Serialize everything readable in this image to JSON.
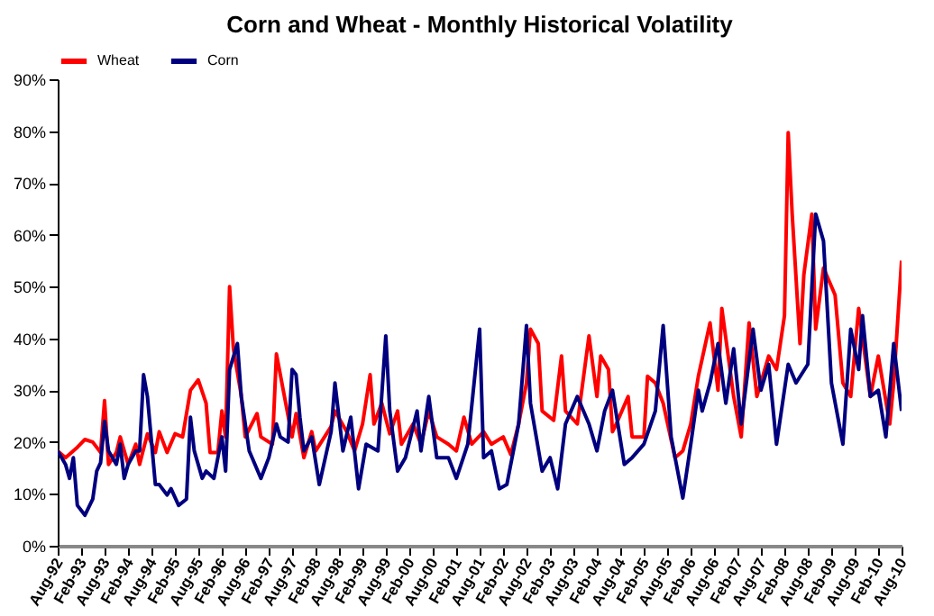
{
  "chart_data": {
    "type": "line",
    "title": "Corn and Wheat - Monthly Historical Volatility",
    "series": [
      {
        "name": "Wheat",
        "color": "#ff0000",
        "x": [
          "1992-08",
          "1992-10",
          "1993-01",
          "1993-03",
          "1993-05",
          "1993-07",
          "1993-08",
          "1993-09",
          "1993-11",
          "1993-12",
          "1994-02",
          "1994-04",
          "1994-05",
          "1994-07",
          "1994-09",
          "1994-10",
          "1994-12",
          "1995-02",
          "1995-04",
          "1995-06",
          "1995-08",
          "1995-10",
          "1995-11",
          "1996-01",
          "1996-02",
          "1996-03",
          "1996-04",
          "1996-05",
          "1996-07",
          "1996-08",
          "1996-11",
          "1996-12",
          "1997-03",
          "1997-04",
          "1997-06",
          "1997-08",
          "1997-09",
          "1997-11",
          "1998-01",
          "1998-02",
          "1998-06",
          "1998-07",
          "1998-10",
          "1998-12",
          "1999-02",
          "1999-04",
          "1999-05",
          "1999-07",
          "1999-09",
          "1999-11",
          "1999-12",
          "2000-03",
          "2000-05",
          "2000-07",
          "2000-09",
          "2000-12",
          "2001-02",
          "2001-04",
          "2001-06",
          "2001-09",
          "2001-11",
          "2002-02",
          "2002-04",
          "2002-06",
          "2002-08",
          "2002-09",
          "2002-11",
          "2002-12",
          "2003-03",
          "2003-05",
          "2003-06",
          "2003-09",
          "2003-12",
          "2004-02",
          "2004-03",
          "2004-05",
          "2004-06",
          "2004-07",
          "2004-10",
          "2004-11",
          "2005-02",
          "2005-03",
          "2005-05",
          "2005-07",
          "2005-10",
          "2005-12",
          "2006-02",
          "2006-04",
          "2006-07",
          "2006-09",
          "2006-10",
          "2007-01",
          "2007-03",
          "2007-05",
          "2007-07",
          "2007-10",
          "2007-12",
          "2008-02",
          "2008-03",
          "2008-04",
          "2008-06",
          "2008-07",
          "2008-09",
          "2008-10",
          "2008-12",
          "2009-03",
          "2009-05",
          "2009-07",
          "2009-09",
          "2009-12",
          "2010-02",
          "2010-05",
          "2010-06",
          "2010-08"
        ],
        "values": [
          18.3,
          17,
          19,
          20.5,
          20,
          18,
          28,
          15.7,
          18,
          21,
          15.7,
          19.6,
          15.7,
          21.6,
          18,
          22,
          18,
          21.6,
          21,
          30,
          32,
          27.5,
          18,
          18,
          26,
          21,
          50,
          38,
          29,
          21,
          25.5,
          21,
          19.6,
          37,
          29,
          21,
          25.5,
          17,
          22,
          18.3,
          23,
          26,
          22,
          18.3,
          23.5,
          33,
          23.5,
          27.5,
          21.6,
          26,
          19.6,
          23.5,
          19.6,
          26,
          21,
          19.6,
          18.3,
          24.8,
          19.6,
          22,
          19.6,
          21,
          17.6,
          23.5,
          31.4,
          41.8,
          39,
          26,
          24.2,
          36.6,
          26,
          23.5,
          40.5,
          28.8,
          36.6,
          34,
          22,
          23.5,
          28.8,
          21,
          21,
          32.7,
          31.4,
          27.5,
          17,
          18.3,
          23.5,
          32.7,
          43,
          30,
          45.8,
          28.8,
          21,
          43,
          28.8,
          36.6,
          34,
          44.4,
          79.7,
          64,
          39,
          52.3,
          64,
          41.8,
          53.6,
          48.4,
          31.4,
          28.8,
          45.8,
          28.8,
          36.6,
          23.5,
          31.4,
          55
        ]
      },
      {
        "name": "Corn",
        "color": "#00007f",
        "x": [
          "1992-08",
          "1992-10",
          "1992-11",
          "1992-12",
          "1993-01",
          "1993-03",
          "1993-05",
          "1993-06",
          "1993-07",
          "1993-08",
          "1993-09",
          "1993-11",
          "1993-12",
          "1994-01",
          "1994-02",
          "1994-04",
          "1994-05",
          "1994-06",
          "1994-07",
          "1994-09",
          "1994-10",
          "1994-12",
          "1995-01",
          "1995-03",
          "1995-05",
          "1995-06",
          "1995-07",
          "1995-09",
          "1995-10",
          "1995-12",
          "1996-02",
          "1996-03",
          "1996-04",
          "1996-06",
          "1996-07",
          "1996-09",
          "1996-12",
          "1997-02",
          "1997-04",
          "1997-05",
          "1997-07",
          "1997-08",
          "1997-09",
          "1997-10",
          "1997-11",
          "1998-01",
          "1998-03",
          "1998-06",
          "1998-07",
          "1998-09",
          "1998-11",
          "1999-01",
          "1999-03",
          "1999-06",
          "1999-08",
          "1999-09",
          "1999-11",
          "2000-01",
          "2000-04",
          "2000-05",
          "2000-07",
          "2000-09",
          "2000-12",
          "2001-02",
          "2001-05",
          "2001-08",
          "2001-09",
          "2001-11",
          "2002-01",
          "2002-03",
          "2002-06",
          "2002-08",
          "2002-09",
          "2002-12",
          "2003-02",
          "2003-04",
          "2003-06",
          "2003-09",
          "2003-12",
          "2004-02",
          "2004-04",
          "2004-06",
          "2004-09",
          "2004-11",
          "2005-02",
          "2005-05",
          "2005-07",
          "2005-09",
          "2005-12",
          "2006-02",
          "2006-04",
          "2006-05",
          "2006-07",
          "2006-09",
          "2006-11",
          "2007-01",
          "2007-03",
          "2007-06",
          "2007-08",
          "2007-10",
          "2007-12",
          "2008-03",
          "2008-05",
          "2008-08",
          "2008-09",
          "2008-10",
          "2008-12",
          "2009-02",
          "2009-05",
          "2009-07",
          "2009-09",
          "2009-10",
          "2009-12",
          "2010-02",
          "2010-04",
          "2010-06",
          "2010-08"
        ],
        "values": [
          18.3,
          15.7,
          13,
          17,
          7.8,
          5.9,
          9,
          14.4,
          16,
          24,
          18.3,
          15.7,
          19.6,
          13,
          15.7,
          18.3,
          18.3,
          33,
          28.8,
          11.8,
          11.8,
          9.8,
          11,
          7.8,
          9,
          24.8,
          18.3,
          13,
          14.4,
          13,
          21,
          14.4,
          34,
          39,
          28.8,
          18.3,
          13,
          17,
          23.5,
          21,
          20,
          34,
          33,
          24.8,
          18.3,
          21,
          11.8,
          22,
          31.4,
          18.3,
          24.8,
          11,
          19.6,
          18.3,
          40.5,
          26,
          14.4,
          17,
          26,
          18.3,
          28.8,
          17,
          17,
          13,
          19.6,
          41.8,
          17,
          18.3,
          11,
          11.8,
          23.5,
          42.5,
          27.5,
          14.4,
          17,
          11,
          23.5,
          28.8,
          23.5,
          18.3,
          26,
          30,
          15.7,
          17,
          19.6,
          26,
          42.5,
          21,
          9.2,
          19.6,
          30,
          26,
          31.4,
          39,
          27.5,
          38,
          23.5,
          41.8,
          30,
          35,
          19.6,
          35,
          31.4,
          35,
          49.7,
          64,
          58.8,
          31.4,
          19.6,
          41.8,
          34,
          44.4,
          28.8,
          30,
          21,
          39,
          26
        ]
      }
    ],
    "xlim": [
      "1992-08",
      "2010-08"
    ],
    "xticks": [
      {
        "value": "1992-08",
        "label": "Aug-92"
      },
      {
        "value": "1993-02",
        "label": "Feb-93"
      },
      {
        "value": "1993-08",
        "label": "Aug-93"
      },
      {
        "value": "1994-02",
        "label": "Feb-94"
      },
      {
        "value": "1994-08",
        "label": "Aug-94"
      },
      {
        "value": "1995-02",
        "label": "Feb-95"
      },
      {
        "value": "1995-08",
        "label": "Aug-95"
      },
      {
        "value": "1996-02",
        "label": "Feb-96"
      },
      {
        "value": "1996-08",
        "label": "Aug-96"
      },
      {
        "value": "1997-02",
        "label": "Feb-97"
      },
      {
        "value": "1997-08",
        "label": "Aug-97"
      },
      {
        "value": "1998-02",
        "label": "Feb-98"
      },
      {
        "value": "1998-08",
        "label": "Aug-98"
      },
      {
        "value": "1999-02",
        "label": "Feb-99"
      },
      {
        "value": "1999-08",
        "label": "Aug-99"
      },
      {
        "value": "2000-02",
        "label": "Feb-00"
      },
      {
        "value": "2000-08",
        "label": "Aug-00"
      },
      {
        "value": "2001-02",
        "label": "Feb-01"
      },
      {
        "value": "2001-08",
        "label": "Aug-01"
      },
      {
        "value": "2002-02",
        "label": "Feb-02"
      },
      {
        "value": "2002-08",
        "label": "Aug-02"
      },
      {
        "value": "2003-02",
        "label": "Feb-03"
      },
      {
        "value": "2003-08",
        "label": "Aug-03"
      },
      {
        "value": "2004-02",
        "label": "Feb-04"
      },
      {
        "value": "2004-08",
        "label": "Aug-04"
      },
      {
        "value": "2005-02",
        "label": "Feb-05"
      },
      {
        "value": "2005-08",
        "label": "Aug-05"
      },
      {
        "value": "2006-02",
        "label": "Feb-06"
      },
      {
        "value": "2006-08",
        "label": "Aug-06"
      },
      {
        "value": "2007-02",
        "label": "Feb-07"
      },
      {
        "value": "2007-08",
        "label": "Aug-07"
      },
      {
        "value": "2008-02",
        "label": "Feb-08"
      },
      {
        "value": "2008-08",
        "label": "Aug-08"
      },
      {
        "value": "2009-02",
        "label": "Feb-09"
      },
      {
        "value": "2009-08",
        "label": "Aug-09"
      },
      {
        "value": "2010-02",
        "label": "Feb-10"
      },
      {
        "value": "2010-08",
        "label": "Aug-10"
      }
    ],
    "ylim": [
      0,
      90
    ],
    "yticks": [
      {
        "value": 0,
        "label": "0%"
      },
      {
        "value": 10,
        "label": "10%"
      },
      {
        "value": 20,
        "label": "20%"
      },
      {
        "value": 30,
        "label": "30%"
      },
      {
        "value": 40,
        "label": "40%"
      },
      {
        "value": 50,
        "label": "50%"
      },
      {
        "value": 60,
        "label": "60%"
      },
      {
        "value": 70,
        "label": "70%"
      },
      {
        "value": 80,
        "label": "80%"
      },
      {
        "value": 90,
        "label": "90%"
      }
    ],
    "grid": false,
    "legend": "top",
    "marker": "none",
    "line_style": "solid"
  }
}
